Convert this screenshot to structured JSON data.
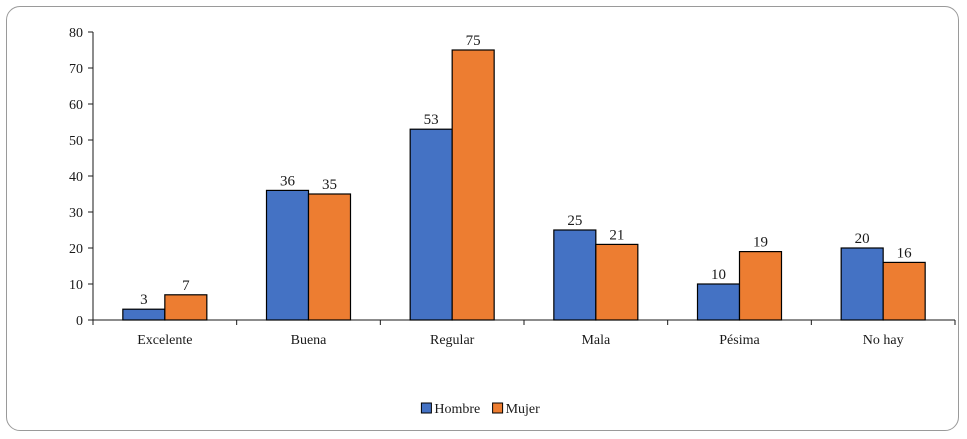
{
  "chart_data": {
    "type": "bar",
    "title": "",
    "xlabel": "",
    "ylabel": "",
    "categories": [
      "Excelente",
      "Buena",
      "Regular",
      "Mala",
      "Pésima",
      "No hay"
    ],
    "series": [
      {
        "name": "Hombre",
        "color": "#4472C4",
        "values": [
          3,
          36,
          53,
          25,
          10,
          20
        ]
      },
      {
        "name": "Mujer",
        "color": "#ED7D31",
        "values": [
          7,
          35,
          75,
          21,
          19,
          16
        ]
      }
    ],
    "ylim": [
      0,
      80
    ],
    "yticks": [
      0,
      10,
      20,
      30,
      40,
      50,
      60,
      70,
      80
    ],
    "grid": false,
    "legend_position": "bottom",
    "data_labels": true
  }
}
